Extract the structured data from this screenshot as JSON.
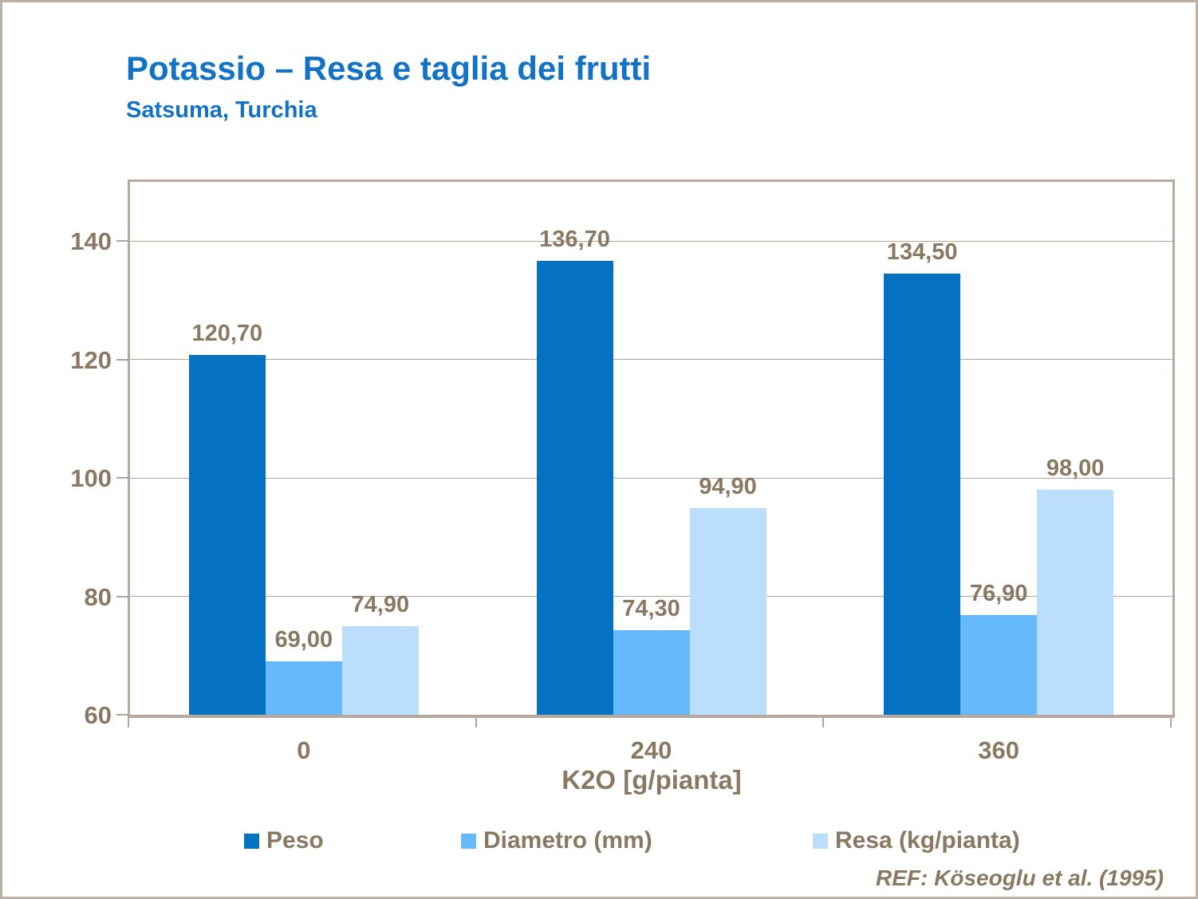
{
  "slide": {
    "title": "Potassio – Resa e taglia dei frutti",
    "subtitle": "Satsuma, Turchia",
    "reference": "REF: Köseoglu  et al. (1995)"
  },
  "colors": {
    "title_blue": "#1272C5",
    "text_brown": "#8A7962",
    "axis_taupe": "#B5AA9D",
    "gridline_taupe": "#B0A499",
    "page_border": "#BCB1A5",
    "bar_dark_blue": "#0572C1",
    "bar_medium_blue": "#66B9FC",
    "bar_light_blue": "#BADEFC"
  },
  "chart_data": {
    "type": "bar",
    "title": "Potassio – Resa e taglia dei frutti",
    "subtitle": "Satsuma, Turchia",
    "categories": [
      "0",
      "240",
      "360"
    ],
    "xlabel": "K2O [g/pianta]",
    "ylabel": "",
    "ylim": [
      60,
      150
    ],
    "yticks": [
      60,
      80,
      100,
      120,
      140
    ],
    "grid": true,
    "legend_position": "bottom",
    "series": [
      {
        "name": "Peso",
        "color": "#0572C1",
        "values": [
          120.7,
          136.7,
          134.5
        ],
        "labels": [
          "120,70",
          "136,70",
          "134,50"
        ]
      },
      {
        "name": "Diametro (mm)",
        "color": "#66B9FC",
        "values": [
          69.0,
          74.3,
          76.9
        ],
        "labels": [
          "69,00",
          "74,30",
          "76,90"
        ]
      },
      {
        "name": "Resa (kg/pianta)",
        "color": "#BADEFC",
        "values": [
          74.9,
          94.9,
          98.0
        ],
        "labels": [
          "74,90",
          "94,90",
          "98,00"
        ]
      }
    ]
  }
}
